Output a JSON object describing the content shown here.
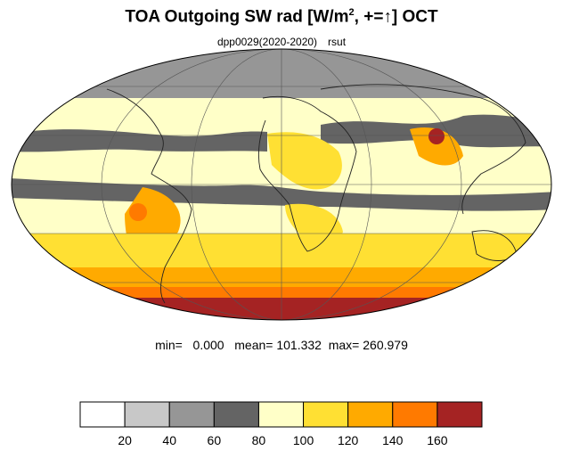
{
  "title": {
    "main": "TOA Outgoing SW rad [W/m",
    "sup": "2",
    "rest": ", +=↑] OCT"
  },
  "subtitle": {
    "run": "dpp0029(2020-2020)",
    "variable": "rsut"
  },
  "stats": {
    "min_label": "min=",
    "min": "0.000",
    "mean_label": "mean=",
    "mean": "101.332",
    "max_label": "max=",
    "max": "260.979"
  },
  "colorbar": {
    "colors": [
      "#ffffff",
      "#c8c8c8",
      "#969696",
      "#646464",
      "#ffffc8",
      "#ffe033",
      "#ffaa00",
      "#ff7a00",
      "#a52323"
    ],
    "labels": [
      "20",
      "40",
      "60",
      "80",
      "100",
      "120",
      "140",
      "160"
    ]
  },
  "map": {
    "projection": "Mollweide",
    "palette": {
      "dark_gray": "#646464",
      "mid_gray": "#969696",
      "light_yellow": "#ffffc8",
      "yellow": "#ffe033",
      "orange": "#ffaa00",
      "dark_orange": "#ff7a00",
      "dark_red": "#a52323"
    }
  }
}
